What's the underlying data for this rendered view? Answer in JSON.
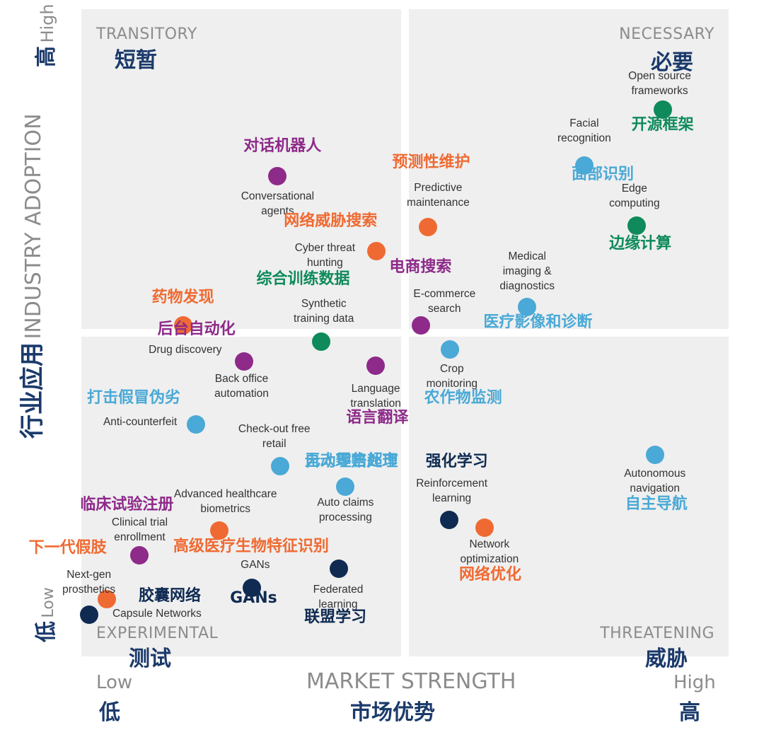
{
  "colors": {
    "navy": "#0f2b52",
    "purple": "#8e2a8a",
    "orange": "#ef6a32",
    "green": "#0e8a5b",
    "blue": "#4aa9d6",
    "quadrant": "#efefef"
  },
  "chart_data": {
    "type": "scatter",
    "title": "",
    "xlabel": "MARKET STRENGTH",
    "xlabel_zh": "市场优势",
    "ylabel": "INDUSTRY ADOPTION",
    "ylabel_zh": "行业应用",
    "xlim": [
      0,
      100
    ],
    "ylim": [
      0,
      100
    ],
    "x_low": "Low",
    "x_low_zh": "低",
    "x_high": "High",
    "x_high_zh": "高",
    "y_low": "Low",
    "y_low_zh": "低",
    "y_high": "High",
    "y_high_zh": "高",
    "quadrants": [
      {
        "id": "transitory",
        "en": "TRANSITORY",
        "zh": "短暂"
      },
      {
        "id": "necessary",
        "en": "NECESSARY",
        "zh": "必要"
      },
      {
        "id": "experimental",
        "en": "EXPERIMENTAL",
        "zh": "测试"
      },
      {
        "id": "threatening",
        "en": "THREATENING",
        "zh": "威胁"
      }
    ],
    "points": [
      {
        "en": "Open source\nframeworks",
        "zh": "开源框架",
        "color": "green",
        "x": 89.8,
        "y": 84.5
      },
      {
        "en": "Facial\nrecognition",
        "zh": "面部识别",
        "color": "blue",
        "x": 77.7,
        "y": 75.8
      },
      {
        "en": "Edge\ncomputing",
        "zh": "边缘计算",
        "color": "green",
        "x": 85.8,
        "y": 66.6
      },
      {
        "en": "Conversational\nagents",
        "zh": "对话机器人",
        "color": "purple",
        "x": 30.3,
        "y": 74.2
      },
      {
        "en": "Predictive\nmaintenance",
        "zh": "预测性维护",
        "color": "orange",
        "x": 53.6,
        "y": 66.3
      },
      {
        "en": "Cyber threat\nhunting",
        "zh": "网络威胁搜索",
        "color": "orange",
        "x": 45.6,
        "y": 62.6
      },
      {
        "en": "Medical\nimaging &\ndiagnostics",
        "zh": "医疗影像和诊断",
        "color": "blue",
        "x": 68.9,
        "y": 54.0
      },
      {
        "en": "E-commerce\nsearch",
        "zh": "电商搜索",
        "color": "purple",
        "x": 52.5,
        "y": 51.1
      },
      {
        "en": "Synthetic\ntraining data",
        "zh": "综合训练数据",
        "color": "green",
        "x": 37.0,
        "y": 48.6
      },
      {
        "en": "Drug discovery",
        "zh": "药物发现",
        "color": "orange",
        "x": 15.7,
        "y": 51.2
      },
      {
        "en": "Back office\nautomation",
        "zh": "后台自动化",
        "color": "purple",
        "x": 25.1,
        "y": 45.6
      },
      {
        "en": "Language\ntranslation",
        "zh": "语言翻译",
        "color": "purple",
        "x": 45.5,
        "y": 44.9
      },
      {
        "en": "Crop\nmonitoring",
        "zh": "农作物监测",
        "color": "blue",
        "x": 56.9,
        "y": 47.4
      },
      {
        "en": "Anti-counterfeit",
        "zh": "打击假冒伪劣",
        "color": "blue",
        "x": 17.7,
        "y": 35.8
      },
      {
        "en": "Check-out free\nretail",
        "zh": "无人零售超市",
        "color": "blue",
        "x": 30.7,
        "y": 29.4
      },
      {
        "en": "Auto claims\nprocessing",
        "zh": "自动理赔处理",
        "color": "blue",
        "x": 40.8,
        "y": 26.2
      },
      {
        "en": "Autonomous\nnavigation",
        "zh": "自主导航",
        "color": "blue",
        "x": 88.6,
        "y": 31.1
      },
      {
        "en": "Reinforcement\nlearning",
        "zh": "强化学习",
        "color": "navy",
        "x": 56.8,
        "y": 21.1
      },
      {
        "en": "Network\noptimization",
        "zh": "网络优化",
        "color": "orange",
        "x": 62.3,
        "y": 19.9
      },
      {
        "en": "Advanced healthcare\nbiometrics",
        "zh": "高级医疗生物特征识别",
        "color": "orange",
        "x": 21.3,
        "y": 19.5
      },
      {
        "en": "Clinical trial\nenrollment",
        "zh": "临床试验注册",
        "color": "purple",
        "x": 9.0,
        "y": 15.6
      },
      {
        "en": "Federated\nlearning",
        "zh": "联盟学习",
        "color": "navy",
        "x": 39.8,
        "y": 13.6
      },
      {
        "en": "GANs",
        "zh": "GANs",
        "color": "navy",
        "x": 26.3,
        "y": 10.6
      },
      {
        "en": "Next-gen\nprosthetics",
        "zh": "下一代假肢",
        "color": "orange",
        "x": 3.9,
        "y": 8.9
      },
      {
        "en": "Capsule Networks",
        "zh": "胶囊网络",
        "color": "navy",
        "x": 1.2,
        "y": 6.4
      }
    ]
  }
}
